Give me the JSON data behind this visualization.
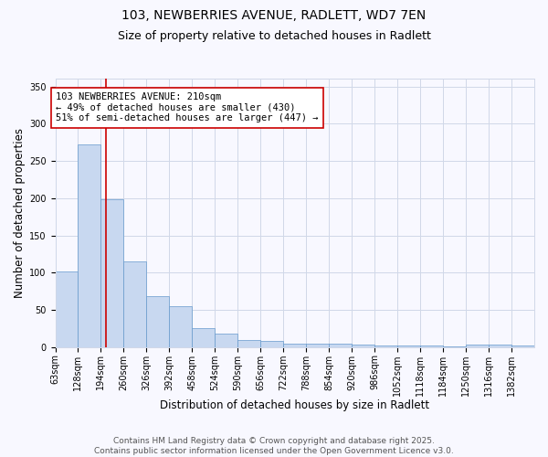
{
  "title1": "103, NEWBERRIES AVENUE, RADLETT, WD7 7EN",
  "title2": "Size of property relative to detached houses in Radlett",
  "xlabel": "Distribution of detached houses by size in Radlett",
  "ylabel": "Number of detached properties",
  "bin_labels": [
    "63sqm",
    "128sqm",
    "194sqm",
    "260sqm",
    "326sqm",
    "392sqm",
    "458sqm",
    "524sqm",
    "590sqm",
    "656sqm",
    "722sqm",
    "788sqm",
    "854sqm",
    "920sqm",
    "986sqm",
    "1052sqm",
    "1118sqm",
    "1184sqm",
    "1250sqm",
    "1316sqm",
    "1382sqm"
  ],
  "bin_edges": [
    63,
    128,
    194,
    260,
    326,
    392,
    458,
    524,
    590,
    656,
    722,
    788,
    854,
    920,
    986,
    1052,
    1118,
    1184,
    1250,
    1316,
    1382,
    1448
  ],
  "values": [
    102,
    272,
    198,
    115,
    68,
    55,
    25,
    18,
    10,
    8,
    5,
    5,
    5,
    3,
    2,
    2,
    2,
    1,
    3,
    3,
    2
  ],
  "bar_color": "#c8d8f0",
  "bar_edge_color": "#6699cc",
  "property_sqm": 210,
  "red_line_color": "#cc0000",
  "annotation_line1": "103 NEWBERRIES AVENUE: 210sqm",
  "annotation_line2": "← 49% of detached houses are smaller (430)",
  "annotation_line3": "51% of semi-detached houses are larger (447) →",
  "annotation_box_color": "#ffffff",
  "annotation_box_edge": "#cc0000",
  "ylim": [
    0,
    360
  ],
  "yticks": [
    0,
    50,
    100,
    150,
    200,
    250,
    300,
    350
  ],
  "footer": "Contains HM Land Registry data © Crown copyright and database right 2025.\nContains public sector information licensed under the Open Government Licence v3.0.",
  "bg_color": "#f8f8ff",
  "grid_color": "#d0d8e8",
  "title_fontsize": 10,
  "subtitle_fontsize": 9,
  "axis_label_fontsize": 8.5,
  "tick_fontsize": 7,
  "footer_fontsize": 6.5
}
